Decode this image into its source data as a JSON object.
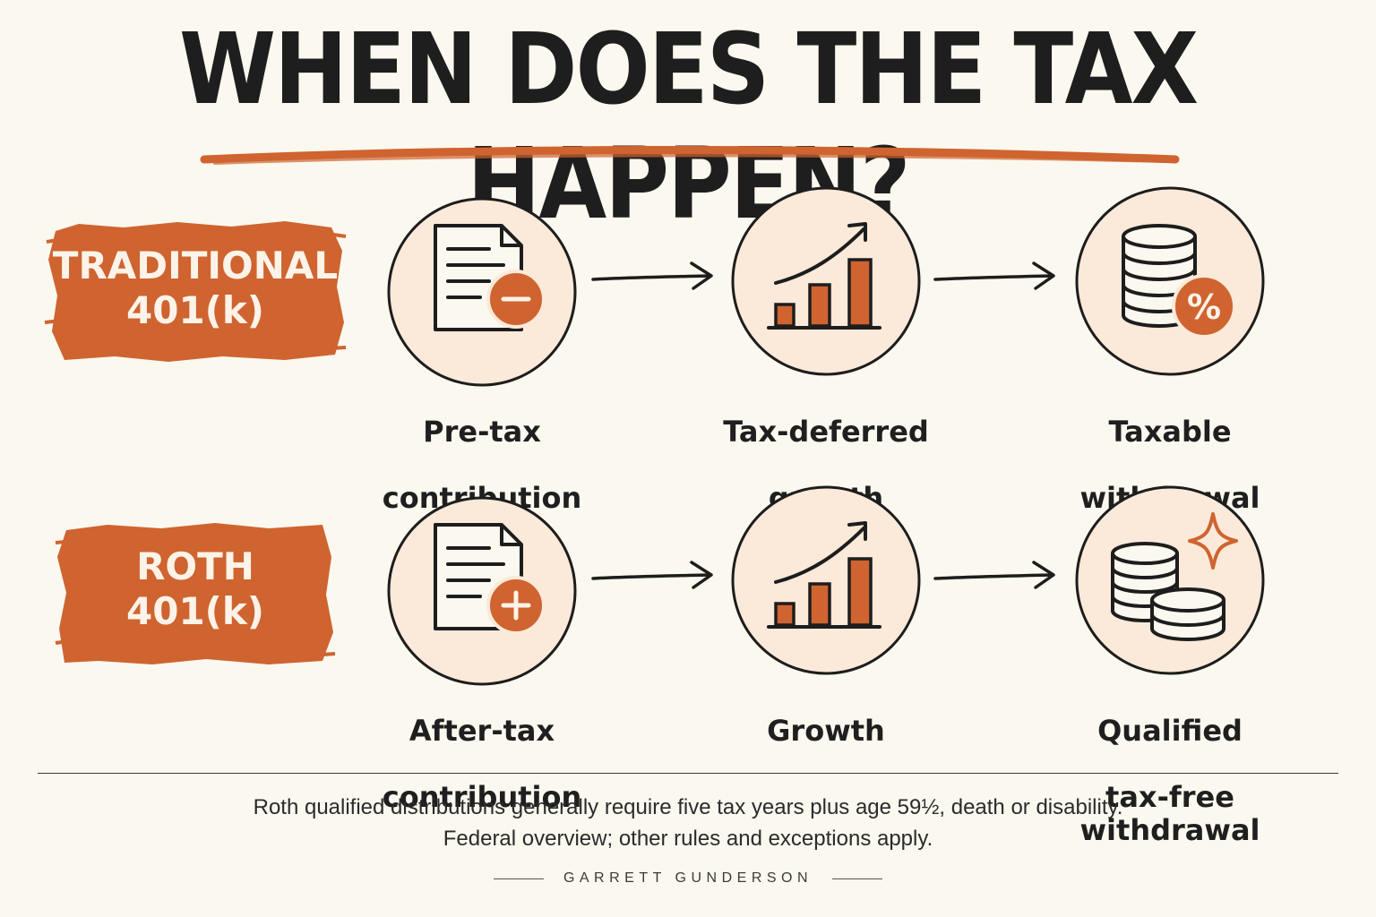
{
  "title": "WHEN DOES THE TAX HAPPEN?",
  "colors": {
    "accent": "#cf6430",
    "circle_fill": "#fbe9d9",
    "background": "#fbf8ef",
    "ink": "#1d1d1d"
  },
  "rows": [
    {
      "label_line1": "TRADITIONAL",
      "label_line2": "401(k)",
      "steps": [
        {
          "icon": "document-minus-icon",
          "line1": "Pre-tax",
          "line2": "contribution"
        },
        {
          "icon": "growth-chart-icon",
          "line1": "Tax-deferred",
          "line2": "growth"
        },
        {
          "icon": "coins-percent-icon",
          "line1": "Taxable",
          "line2": "withdrawal"
        }
      ]
    },
    {
      "label_line1": "ROTH",
      "label_line2": "401(k)",
      "steps": [
        {
          "icon": "document-plus-icon",
          "line1": "After-tax",
          "line2": "contribution"
        },
        {
          "icon": "growth-chart-icon",
          "line1": "Growth",
          "line2": ""
        },
        {
          "icon": "coins-sparkle-icon",
          "line1": "Qualified",
          "line2": "tax-free withdrawal"
        }
      ]
    }
  ],
  "footnote_line1": "Roth qualified distributions generally require five tax years plus age 59½, death or disability.",
  "footnote_line2": "Federal overview; other rules and exceptions apply.",
  "brand": "GARRETT GUNDERSON"
}
